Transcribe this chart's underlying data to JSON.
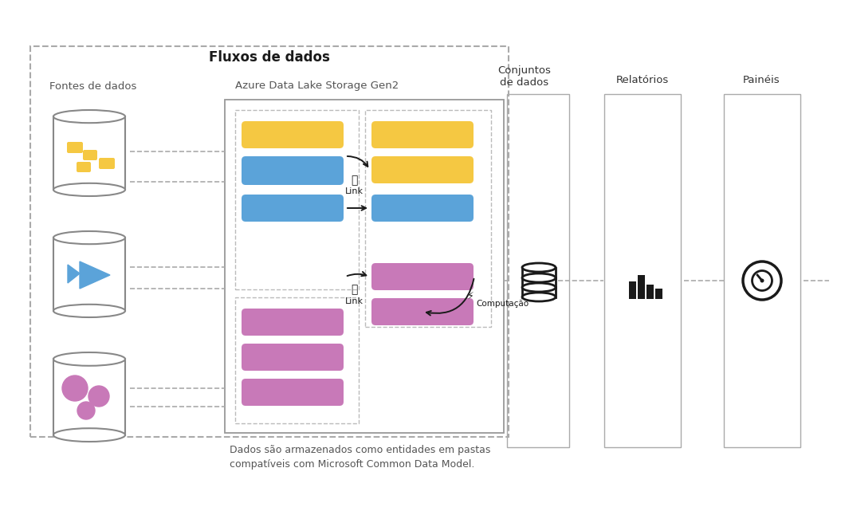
{
  "title": "Fluxos de dados",
  "bg_color": "#ffffff",
  "yellow": "#F5C842",
  "blue": "#5BA3D9",
  "pink": "#C879B8",
  "gray": "#808080",
  "light_gray": "#AAAAAA",
  "dark": "#1a1a1a",
  "fontes": "Fontes de dados",
  "azure": "Azure Data Lake Storage Gen2",
  "conjuntos": "Conjuntos\nde dados",
  "relatorios": "Relatórios",
  "paineis": "Painéis",
  "link": "Link",
  "computacao": "Computação",
  "note": "Dados são armazenados como entidades em pastas\ncompatíveis com Microsoft Common Data Model."
}
